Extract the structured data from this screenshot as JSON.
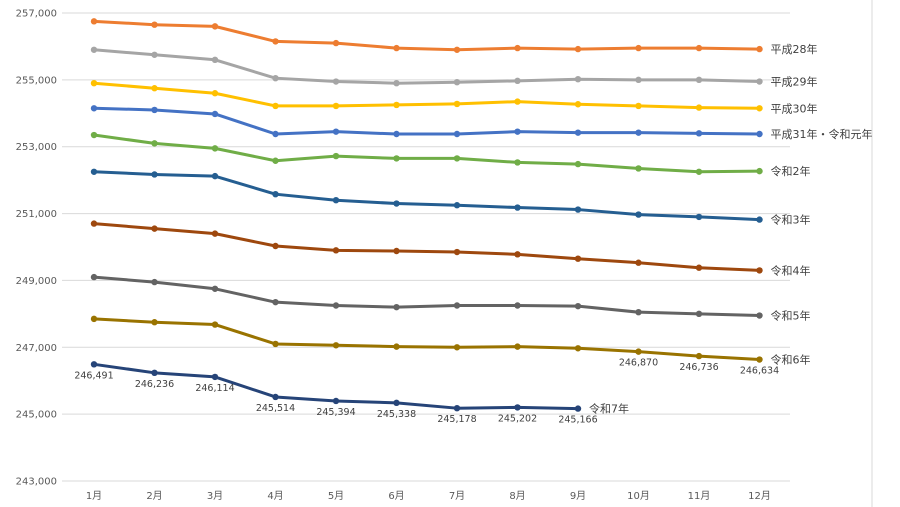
{
  "chart_data": {
    "type": "line",
    "title": "",
    "xlabel": "",
    "ylabel": "",
    "ylim": [
      243000,
      257000
    ],
    "y_ticks": [
      "243,000",
      "245,000",
      "247,000",
      "249,000",
      "251,000",
      "253,000",
      "255,000",
      "257,000"
    ],
    "y_tick_values": [
      243000,
      245000,
      247000,
      249000,
      251000,
      253000,
      255000,
      257000
    ],
    "categories": [
      "1月",
      "2月",
      "3月",
      "4月",
      "5月",
      "6月",
      "7月",
      "8月",
      "9月",
      "10月",
      "11月",
      "12月"
    ],
    "grid": true,
    "legend": "series labels at right end of each line",
    "series": [
      {
        "name": "平成28年",
        "color": "#ED7D31",
        "values": [
          256750,
          256650,
          256600,
          256150,
          256100,
          255950,
          255900,
          255950,
          255920,
          255950,
          255950,
          255920
        ]
      },
      {
        "name": "平成29年",
        "color": "#A5A5A5",
        "values": [
          255900,
          255750,
          255600,
          255050,
          254950,
          254900,
          254930,
          254970,
          255020,
          255000,
          255000,
          254950
        ]
      },
      {
        "name": "平成30年",
        "color": "#FFC000",
        "values": [
          254900,
          254750,
          254600,
          254220,
          254220,
          254250,
          254280,
          254350,
          254270,
          254220,
          254170,
          254150
        ]
      },
      {
        "name": "平成31年・令和元年",
        "color": "#4472C4",
        "values": [
          254150,
          254100,
          253980,
          253380,
          253450,
          253380,
          253380,
          253450,
          253420,
          253420,
          253400,
          253380
        ]
      },
      {
        "name": "令和2年",
        "color": "#70AD47",
        "values": [
          253350,
          253100,
          252950,
          252580,
          252720,
          252650,
          252650,
          252530,
          252480,
          252350,
          252250,
          252270
        ]
      },
      {
        "name": "令和3年",
        "color": "#255E91",
        "values": [
          252250,
          252170,
          252120,
          251580,
          251400,
          251300,
          251250,
          251180,
          251120,
          250970,
          250900,
          250820
        ]
      },
      {
        "name": "令和4年",
        "color": "#9E480E",
        "values": [
          250700,
          250550,
          250400,
          250030,
          249900,
          249880,
          249850,
          249780,
          249650,
          249530,
          249380,
          249300
        ]
      },
      {
        "name": "令和5年",
        "color": "#636363",
        "values": [
          249100,
          248950,
          248750,
          248350,
          248250,
          248200,
          248250,
          248250,
          248230,
          248050,
          248000,
          247950
        ]
      },
      {
        "name": "令和6年",
        "color": "#997300",
        "values": [
          247850,
          247750,
          247680,
          247100,
          247060,
          247020,
          247000,
          247020,
          246970,
          246870,
          246736,
          246634
        ],
        "data_labels": [
          "",
          "",
          "",
          "",
          "",
          "",
          "",
          "",
          "",
          "246,870",
          "246,736",
          "246,634"
        ]
      },
      {
        "name": "令和7年",
        "color": "#264478",
        "values": [
          246491,
          246236,
          246114,
          245514,
          245394,
          245338,
          245178,
          245202,
          245166,
          null,
          null,
          null
        ],
        "data_labels": [
          "246,491",
          "246,236",
          "246,114",
          "245,514",
          "245,394",
          "245,338",
          "245,178",
          "245,202",
          "245,166",
          "",
          "",
          ""
        ]
      }
    ]
  }
}
